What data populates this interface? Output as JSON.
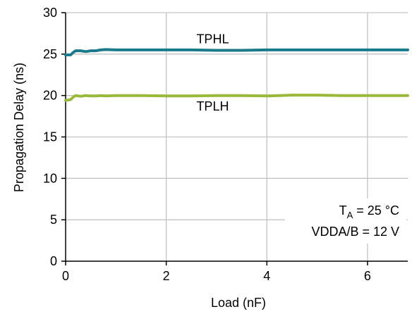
{
  "chart_data": {
    "type": "line",
    "title": "",
    "xlabel": "Load (nF)",
    "ylabel": "Propagation Delay (ns)",
    "xlim": [
      0,
      6.8
    ],
    "ylim": [
      0,
      30
    ],
    "x_ticks": [
      0,
      2,
      4,
      6
    ],
    "y_ticks": [
      0,
      5,
      10,
      15,
      20,
      25,
      30
    ],
    "grid": true,
    "series": [
      {
        "name": "TPHL",
        "color": "#1a7a8c",
        "x": [
          0,
          0.1,
          0.15,
          0.2,
          0.3,
          0.4,
          0.5,
          0.6,
          0.7,
          0.8,
          1.0,
          1.5,
          2.0,
          2.5,
          3.0,
          3.5,
          4.0,
          4.5,
          5.0,
          5.5,
          6.0,
          6.5,
          6.8
        ],
        "y": [
          24.9,
          24.9,
          25.2,
          25.4,
          25.4,
          25.3,
          25.4,
          25.4,
          25.5,
          25.55,
          25.5,
          25.5,
          25.5,
          25.5,
          25.45,
          25.45,
          25.5,
          25.5,
          25.5,
          25.5,
          25.5,
          25.5,
          25.5
        ]
      },
      {
        "name": "TPLH",
        "color": "#9ab93a",
        "x": [
          0,
          0.1,
          0.15,
          0.2,
          0.3,
          0.4,
          0.5,
          0.6,
          0.7,
          0.8,
          1.0,
          1.5,
          2.0,
          2.5,
          3.0,
          3.5,
          4.0,
          4.5,
          5.0,
          5.5,
          6.0,
          6.5,
          6.8
        ],
        "y": [
          19.4,
          19.5,
          19.8,
          20.0,
          19.9,
          20.0,
          19.95,
          19.95,
          20.0,
          19.95,
          20.0,
          20.0,
          19.95,
          19.95,
          20.0,
          20.0,
          19.95,
          20.05,
          20.05,
          20.0,
          20.0,
          20.0,
          20.0
        ]
      }
    ],
    "series_labels": [
      {
        "text": "TPHL",
        "x": 2.6,
        "y": 26.3
      },
      {
        "text": "TPLH",
        "x": 2.6,
        "y": 18.2
      }
    ],
    "annotations": [
      {
        "main": "T",
        "sub": "A",
        "rest": " = 25 °C"
      },
      {
        "main": "VDDA/B = 12 V"
      }
    ]
  }
}
